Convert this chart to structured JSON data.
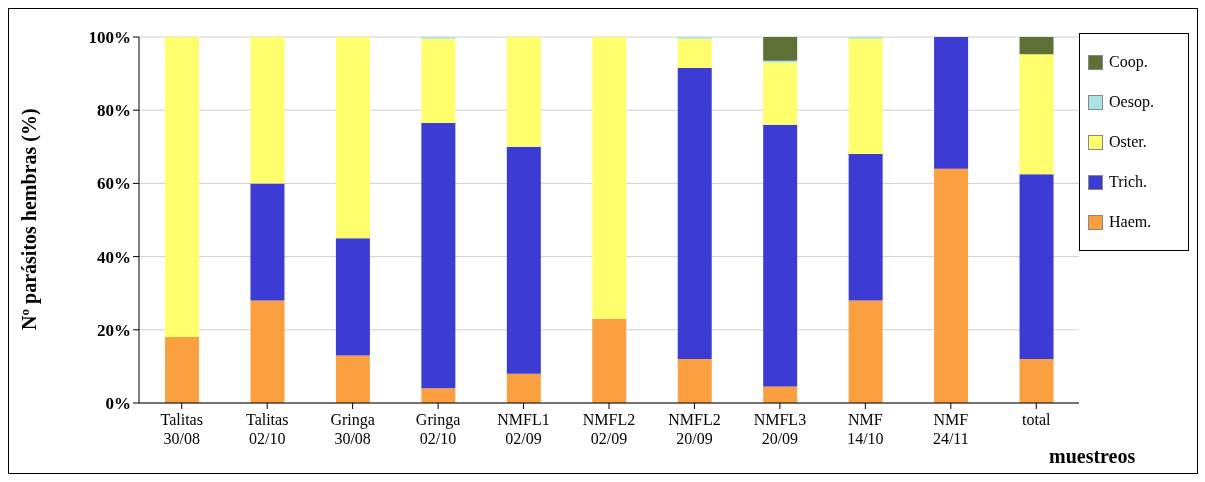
{
  "chart_data": {
    "type": "bar",
    "stacked": true,
    "ylabel": "Nº parásitos hembras (%)",
    "xlabel": "muestreos",
    "categories": [
      "Talitas 30/08",
      "Talitas 02/10",
      "Gringa 30/08",
      "Gringa 02/10",
      "NMFL1 02/09",
      "NMFL2 02/09",
      "NMFL2 20/09",
      "NMFL3 20/09",
      "NMF 14/10",
      "NMF 24/11",
      "total"
    ],
    "series": [
      {
        "name": "Haem.",
        "color": "#fba040",
        "values": [
          18,
          28,
          13,
          4,
          8,
          23,
          12,
          4.5,
          28,
          64,
          12
        ]
      },
      {
        "name": "Trich.",
        "color": "#3c3cd4",
        "values": [
          0,
          32,
          32,
          72.5,
          62,
          0,
          79.5,
          71.5,
          40,
          36,
          50.5
        ]
      },
      {
        "name": "Oster.",
        "color": "#ffff6e",
        "values": [
          82,
          40,
          55,
          23,
          30,
          77,
          8,
          17,
          31.5,
          0,
          32.8
        ]
      },
      {
        "name": "Oesop.",
        "color": "#a8e4e4",
        "values": [
          0,
          0,
          0,
          0.5,
          0,
          0,
          0.5,
          0.5,
          0.5,
          0,
          0
        ]
      },
      {
        "name": "Coop.",
        "color": "#5e7035",
        "values": [
          0,
          0,
          0,
          0,
          0,
          0,
          0,
          6.5,
          0,
          0,
          4.7
        ]
      }
    ],
    "ylim": [
      0,
      100
    ],
    "yticks": [
      {
        "value": 0,
        "label": "0%"
      },
      {
        "value": 20,
        "label": "20%"
      },
      {
        "value": 40,
        "label": "40%"
      },
      {
        "value": 60,
        "label": "60%"
      },
      {
        "value": 80,
        "label": "80%"
      },
      {
        "value": 100,
        "label": "100%"
      }
    ],
    "grid": "y",
    "legend": "right"
  }
}
